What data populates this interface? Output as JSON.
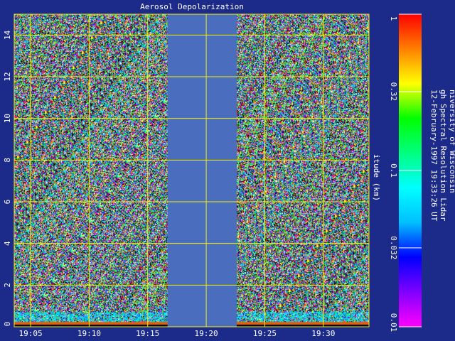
{
  "chart_data": {
    "type": "heatmap",
    "title": "Aerosol Depolarization",
    "ylabel": "itude (km)",
    "x_ticks": [
      "19:05",
      "19:10",
      "19:15",
      "19:20",
      "19:25",
      "19:30"
    ],
    "x_tick_minutes": [
      5,
      10,
      15,
      20,
      25,
      30
    ],
    "x_range_minutes": [
      3.6,
      33.9
    ],
    "y_ticks": [
      "0",
      "2",
      "4",
      "6",
      "8",
      "10",
      "12",
      "14"
    ],
    "ylim": [
      0,
      15
    ],
    "no_data_minutes": [
      16.7,
      22.6
    ],
    "grid": true,
    "colorbar": {
      "ticks": [
        "1",
        "0.32",
        "0.1",
        "0.032",
        "0.01"
      ],
      "scale": "log",
      "range": [
        0.01,
        1
      ],
      "colors": [
        "#ff00ff",
        "#8000ff",
        "#0000ff",
        "#00bfff",
        "#00ffff",
        "#00ff80",
        "#00ff00",
        "#ffff00",
        "#ff8000",
        "#ff0000"
      ]
    },
    "side_text": [
      "niversity of Wisconsin",
      "gh Spectral Resolution Lidar",
      "12-February-1997 19:33:26 UT"
    ]
  },
  "colors": {
    "background": "#1c2a8a",
    "grid": "#f2f200",
    "text": "#ffffff",
    "no_data": "#4a6dbd",
    "ground": "#e06010"
  }
}
